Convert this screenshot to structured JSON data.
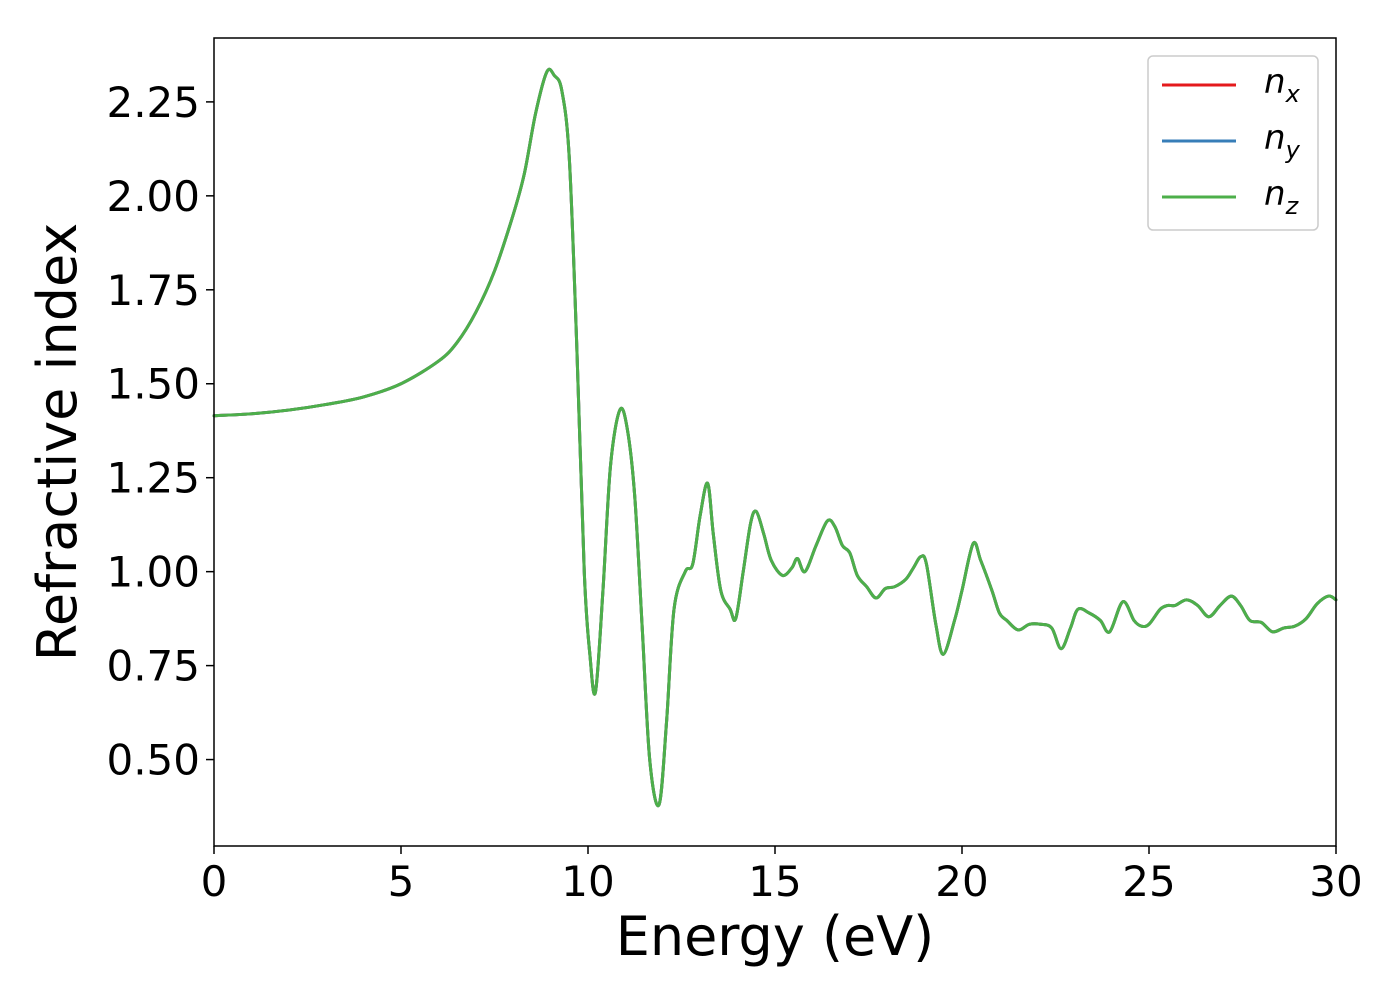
{
  "chart_data": {
    "type": "line",
    "title": "",
    "xlabel": "Energy (eV)",
    "ylabel": "Refractive index",
    "xlim": [
      0,
      30
    ],
    "ylim": [
      0.27,
      2.42
    ],
    "xticks": [
      0,
      5,
      10,
      15,
      20,
      25,
      30
    ],
    "xtick_labels": [
      "0",
      "5",
      "10",
      "15",
      "20",
      "25",
      "30"
    ],
    "yticks": [
      0.5,
      0.75,
      1.0,
      1.25,
      1.5,
      1.75,
      2.0,
      2.25
    ],
    "ytick_labels": [
      "0.50",
      "0.75",
      "1.00",
      "1.25",
      "1.50",
      "1.75",
      "2.00",
      "2.25"
    ],
    "grid": false,
    "legend_position": "top-right",
    "legend": [
      {
        "base": "n",
        "sub": "x",
        "color": "#e41a1c"
      },
      {
        "base": "n",
        "sub": "y",
        "color": "#377eb8"
      },
      {
        "base": "n",
        "sub": "z",
        "color": "#4daf4a"
      }
    ],
    "x": [
      0,
      1,
      2,
      3,
      4,
      5,
      6,
      6.5,
      7,
      7.5,
      8,
      8.3,
      8.6,
      8.9,
      9.1,
      9.3,
      9.5,
      9.7,
      9.9,
      10.05,
      10.2,
      10.4,
      10.6,
      10.85,
      11.05,
      11.25,
      11.45,
      11.65,
      11.9,
      12.1,
      12.3,
      12.6,
      12.8,
      13.0,
      13.2,
      13.35,
      13.55,
      13.8,
      13.95,
      14.15,
      14.35,
      14.5,
      14.7,
      14.9,
      15.2,
      15.45,
      15.6,
      15.8,
      16.1,
      16.4,
      16.6,
      16.8,
      17.0,
      17.2,
      17.45,
      17.7,
      17.95,
      18.2,
      18.5,
      18.7,
      18.9,
      19.05,
      19.3,
      19.5,
      19.8,
      20.0,
      20.3,
      20.5,
      20.8,
      21.0,
      21.2,
      21.5,
      21.8,
      22.1,
      22.4,
      22.65,
      22.9,
      23.1,
      23.4,
      23.7,
      23.95,
      24.3,
      24.6,
      24.8,
      25.0,
      25.3,
      25.5,
      25.7,
      26.0,
      26.3,
      26.6,
      26.9,
      27.2,
      27.45,
      27.7,
      28.0,
      28.3,
      28.6,
      28.9,
      29.2,
      29.5,
      29.8,
      30.0
    ],
    "series": [
      {
        "name": "n_x",
        "color": "#e41a1c",
        "values": [
          1.415,
          1.42,
          1.43,
          1.445,
          1.465,
          1.5,
          1.56,
          1.61,
          1.69,
          1.8,
          1.95,
          2.06,
          2.22,
          2.33,
          2.32,
          2.28,
          2.1,
          1.6,
          1.0,
          0.78,
          0.68,
          0.95,
          1.28,
          1.43,
          1.38,
          1.2,
          0.85,
          0.5,
          0.38,
          0.6,
          0.9,
          1.0,
          1.02,
          1.15,
          1.235,
          1.1,
          0.95,
          0.9,
          0.875,
          1.0,
          1.13,
          1.16,
          1.1,
          1.03,
          0.99,
          1.01,
          1.035,
          1.0,
          1.07,
          1.135,
          1.12,
          1.07,
          1.05,
          0.99,
          0.96,
          0.93,
          0.955,
          0.96,
          0.98,
          1.01,
          1.04,
          1.02,
          0.86,
          0.78,
          0.87,
          0.95,
          1.075,
          1.03,
          0.95,
          0.89,
          0.87,
          0.845,
          0.86,
          0.86,
          0.85,
          0.795,
          0.85,
          0.9,
          0.89,
          0.87,
          0.84,
          0.92,
          0.87,
          0.855,
          0.86,
          0.9,
          0.91,
          0.91,
          0.925,
          0.91,
          0.88,
          0.91,
          0.935,
          0.91,
          0.87,
          0.865,
          0.84,
          0.85,
          0.855,
          0.875,
          0.915,
          0.935,
          0.925
        ]
      },
      {
        "name": "n_y",
        "color": "#377eb8",
        "values": [
          1.415,
          1.42,
          1.43,
          1.445,
          1.465,
          1.5,
          1.56,
          1.61,
          1.69,
          1.8,
          1.95,
          2.06,
          2.22,
          2.33,
          2.32,
          2.28,
          2.1,
          1.6,
          1.0,
          0.78,
          0.68,
          0.95,
          1.28,
          1.43,
          1.38,
          1.2,
          0.85,
          0.5,
          0.38,
          0.6,
          0.9,
          1.0,
          1.02,
          1.15,
          1.235,
          1.1,
          0.95,
          0.9,
          0.875,
          1.0,
          1.13,
          1.16,
          1.1,
          1.03,
          0.99,
          1.01,
          1.035,
          1.0,
          1.07,
          1.135,
          1.12,
          1.07,
          1.05,
          0.99,
          0.96,
          0.93,
          0.955,
          0.96,
          0.98,
          1.01,
          1.04,
          1.02,
          0.86,
          0.78,
          0.87,
          0.95,
          1.075,
          1.03,
          0.95,
          0.89,
          0.87,
          0.845,
          0.86,
          0.86,
          0.85,
          0.795,
          0.85,
          0.9,
          0.89,
          0.87,
          0.84,
          0.92,
          0.87,
          0.855,
          0.86,
          0.9,
          0.91,
          0.91,
          0.925,
          0.91,
          0.88,
          0.91,
          0.935,
          0.91,
          0.87,
          0.865,
          0.84,
          0.85,
          0.855,
          0.875,
          0.915,
          0.935,
          0.925
        ]
      },
      {
        "name": "n_z",
        "color": "#4daf4a",
        "values": [
          1.415,
          1.42,
          1.43,
          1.445,
          1.465,
          1.5,
          1.56,
          1.61,
          1.69,
          1.8,
          1.95,
          2.06,
          2.22,
          2.33,
          2.32,
          2.28,
          2.1,
          1.6,
          1.0,
          0.78,
          0.68,
          0.95,
          1.28,
          1.43,
          1.38,
          1.2,
          0.85,
          0.5,
          0.38,
          0.6,
          0.9,
          1.0,
          1.02,
          1.15,
          1.235,
          1.1,
          0.95,
          0.9,
          0.875,
          1.0,
          1.13,
          1.16,
          1.1,
          1.03,
          0.99,
          1.01,
          1.035,
          1.0,
          1.07,
          1.135,
          1.12,
          1.07,
          1.05,
          0.99,
          0.96,
          0.93,
          0.955,
          0.96,
          0.98,
          1.01,
          1.04,
          1.02,
          0.86,
          0.78,
          0.87,
          0.95,
          1.075,
          1.03,
          0.95,
          0.89,
          0.87,
          0.845,
          0.86,
          0.86,
          0.85,
          0.795,
          0.85,
          0.9,
          0.89,
          0.87,
          0.84,
          0.92,
          0.87,
          0.855,
          0.86,
          0.9,
          0.91,
          0.91,
          0.925,
          0.91,
          0.88,
          0.91,
          0.935,
          0.91,
          0.87,
          0.865,
          0.84,
          0.85,
          0.855,
          0.875,
          0.915,
          0.935,
          0.925
        ]
      }
    ]
  }
}
